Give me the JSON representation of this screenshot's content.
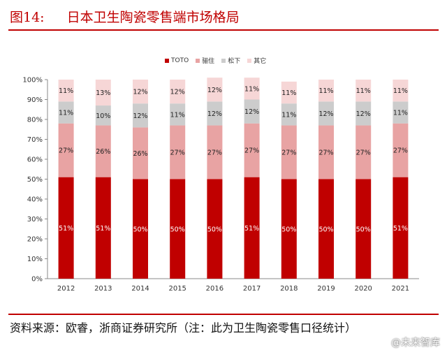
{
  "figure": {
    "number": "图14:",
    "title": "日本卫生陶瓷零售端市场格局"
  },
  "source_note": "资料来源：欧睿，浙商证券研究所（注：此为卫生陶瓷零售口径统计）",
  "watermark": "@未来智库",
  "chart_data": {
    "type": "bar",
    "stacked": true,
    "normalized": true,
    "title": "",
    "xlabel": "",
    "ylabel": "",
    "ylim": [
      0,
      100
    ],
    "y_ticks": [
      "0%",
      "10%",
      "20%",
      "30%",
      "40%",
      "50%",
      "60%",
      "70%",
      "80%",
      "90%",
      "100%"
    ],
    "categories": [
      "2012",
      "2013",
      "2014",
      "2015",
      "2016",
      "2017",
      "2018",
      "2019",
      "2020",
      "2021"
    ],
    "legend_position": "top-center",
    "grid": false,
    "series": [
      {
        "name": "TOTO",
        "color": "#c00000",
        "label_color": "#ffffff",
        "values": [
          51,
          51,
          50,
          50,
          50,
          51,
          50,
          50,
          50,
          51
        ],
        "labels": [
          "51%",
          "51%",
          "50%",
          "50%",
          "50%",
          "51%",
          "50%",
          "50%",
          "50%",
          "51%"
        ]
      },
      {
        "name": "骊住",
        "color": "#e8a3a3",
        "label_color": "#222222",
        "values": [
          27,
          26,
          26,
          27,
          27,
          27,
          27,
          27,
          27,
          27
        ],
        "labels": [
          "27%",
          "26%",
          "26%",
          "27%",
          "27%",
          "27%",
          "27%",
          "27%",
          "27%",
          "27%"
        ]
      },
      {
        "name": "松下",
        "color": "#cccccc",
        "label_color": "#222222",
        "values": [
          11,
          10,
          12,
          11,
          12,
          12,
          11,
          12,
          12,
          11
        ],
        "labels": [
          "11%",
          "10%",
          "12%",
          "11%",
          "12%",
          "12%",
          "11%",
          "12%",
          "12%",
          "11%"
        ]
      },
      {
        "name": "其它",
        "color": "#f6d6d6",
        "label_color": "#222222",
        "values": [
          11,
          13,
          12,
          12,
          12,
          11,
          11,
          11,
          11,
          11
        ],
        "labels": [
          "11%",
          "13%",
          "12%",
          "12%",
          "12%",
          "11%",
          "11%",
          "11%",
          "11%",
          "11%"
        ]
      }
    ]
  }
}
